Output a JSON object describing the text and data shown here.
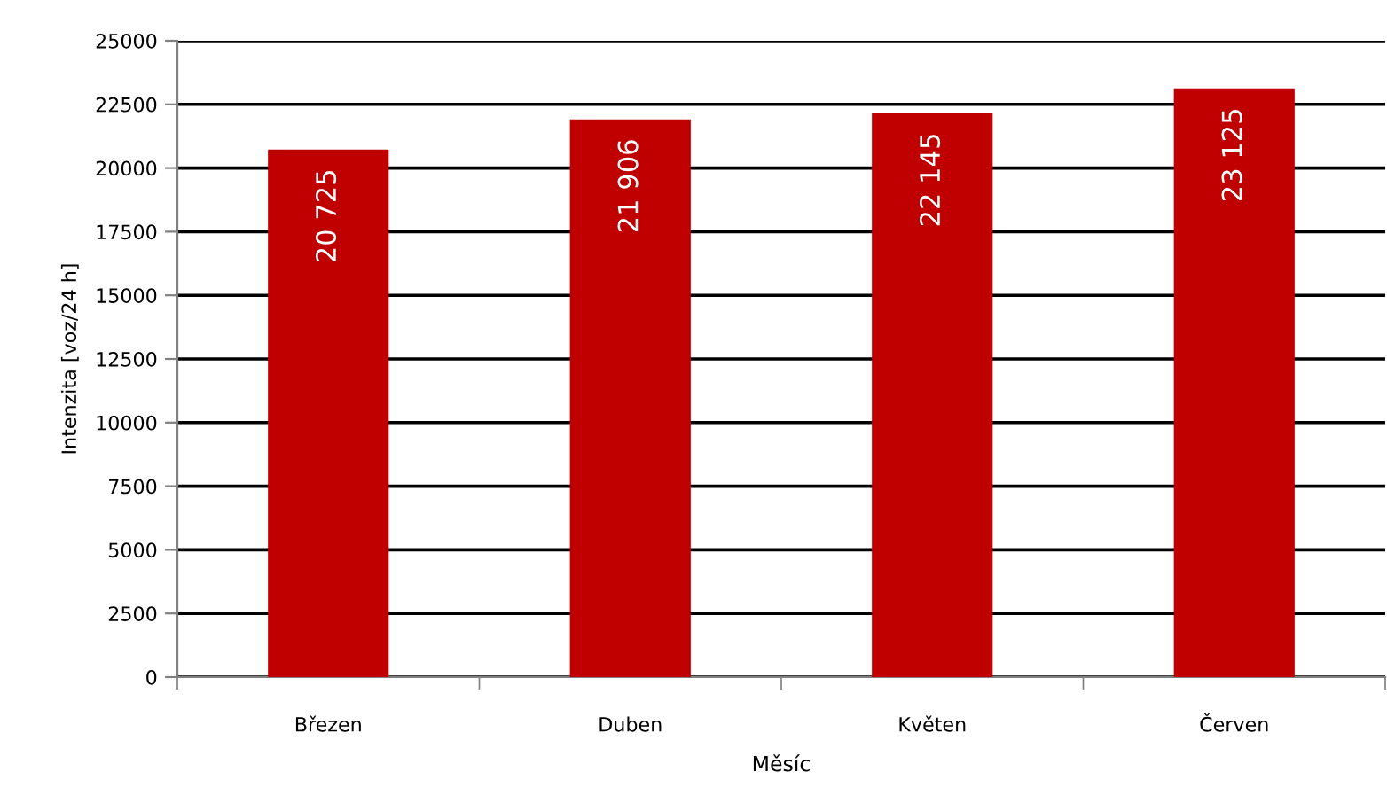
{
  "chart_data": {
    "type": "bar",
    "xlabel": "Měsíc",
    "ylabel": "Intenzita [voz/24 h]",
    "categories": [
      "Březen",
      "Duben",
      "Květen",
      "Červen"
    ],
    "values": [
      20725,
      21906,
      22145,
      23125
    ],
    "color": "#c00000",
    "value_labels": [
      "20 725",
      "21 906",
      "22 145",
      "23 125"
    ],
    "ylim": [
      0,
      25000
    ],
    "yticks": [
      0,
      2500,
      5000,
      7500,
      10000,
      12500,
      15000,
      17500,
      20000,
      22500,
      25000
    ],
    "grid": "y"
  }
}
